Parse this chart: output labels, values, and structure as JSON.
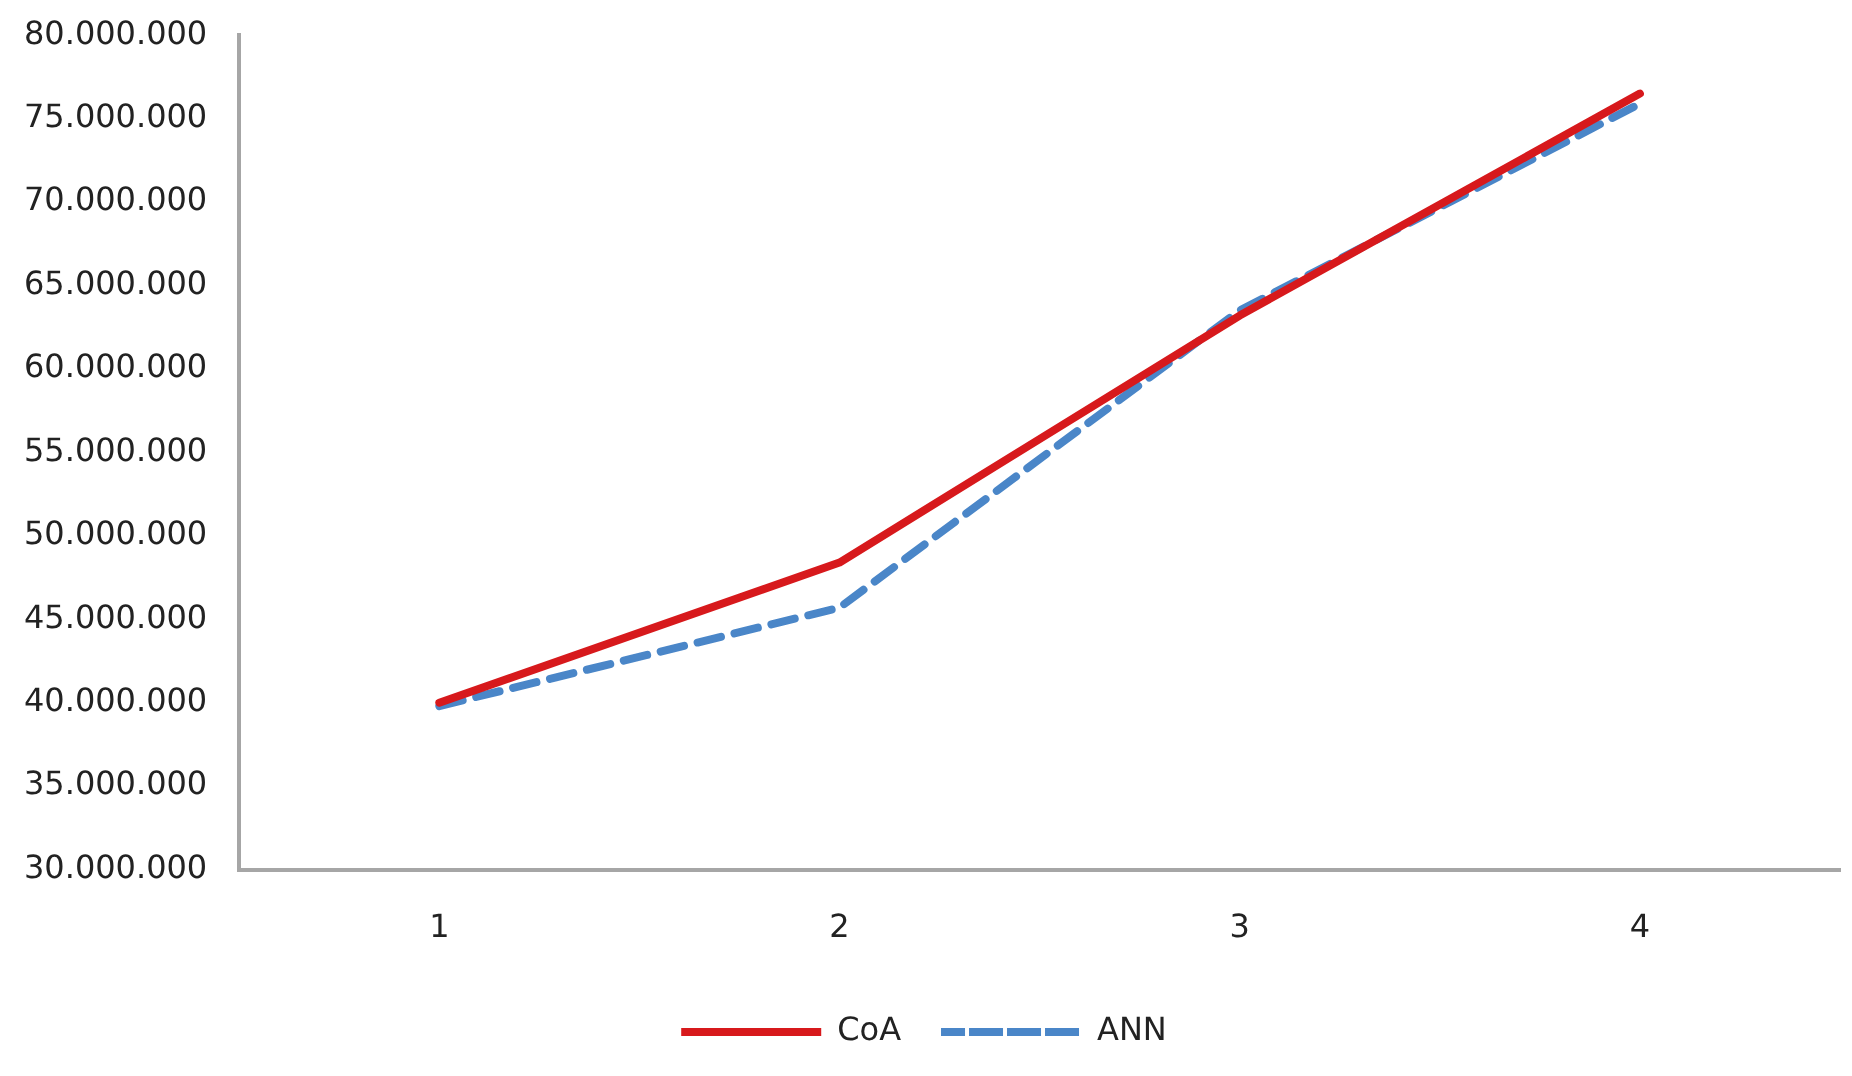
{
  "chart_data": {
    "type": "line",
    "categories": [
      "1",
      "2",
      "3",
      "4"
    ],
    "series": [
      {
        "name": "CoA",
        "color": "#d7191c",
        "values": [
          40000000,
          48400000,
          63200000,
          76500000
        ],
        "line_style": "solid"
      },
      {
        "name": "ANN",
        "color": "#4a86c8",
        "values": [
          39800000,
          45700000,
          63500000,
          75900000
        ],
        "line_style": "dashed"
      }
    ],
    "ylim": [
      30000000,
      80000000
    ],
    "yticks": [
      {
        "value": 30000000,
        "label": "30.000.000"
      },
      {
        "value": 35000000,
        "label": "35.000.000"
      },
      {
        "value": 40000000,
        "label": "40.000.000"
      },
      {
        "value": 45000000,
        "label": "45.000.000"
      },
      {
        "value": 50000000,
        "label": "50.000.000"
      },
      {
        "value": 55000000,
        "label": "55.000.000"
      },
      {
        "value": 60000000,
        "label": "60.000.000"
      },
      {
        "value": 65000000,
        "label": "65.000.000"
      },
      {
        "value": 70000000,
        "label": "70.000.000"
      },
      {
        "value": 75000000,
        "label": "75.000.000"
      },
      {
        "value": 80000000,
        "label": "80.000.000"
      }
    ],
    "grid": false,
    "legend": "bottom",
    "marker": "none"
  }
}
